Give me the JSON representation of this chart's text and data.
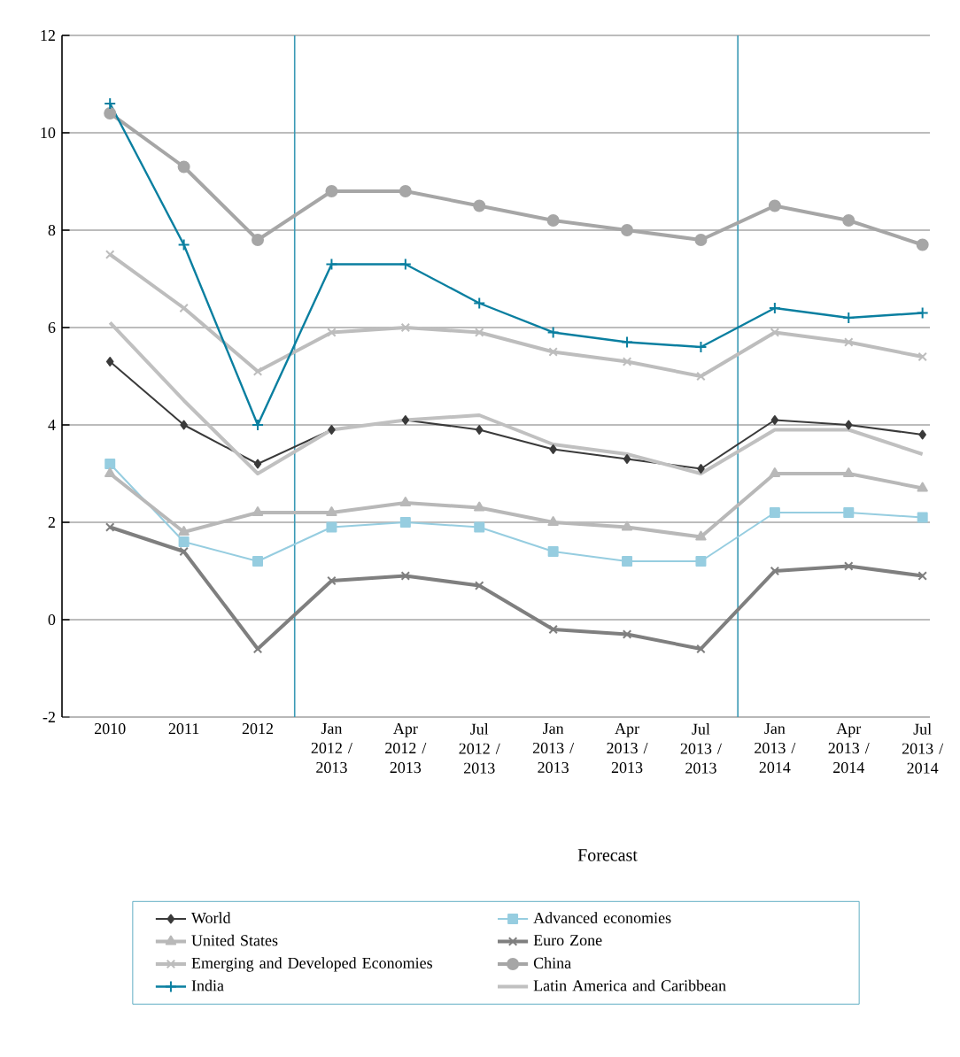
{
  "chart_data": {
    "type": "line",
    "categories": [
      "2010",
      "2011",
      "2012",
      "Jan 2012 / 2013",
      "Apr 2012 / 2013",
      "Jul 2012 / 2013",
      "Jan 2013 / 2013",
      "Apr 2013 / 2013",
      "Jul 2013 / 2013",
      "Jan 2013 / 2014",
      "Apr 2013 / 2014",
      "Jul 2013 / 2014"
    ],
    "series": [
      {
        "name": "World",
        "color": "#3a3a3a",
        "marker": "diamond",
        "values": [
          5.3,
          4.0,
          3.2,
          3.9,
          4.1,
          3.9,
          3.5,
          3.3,
          3.1,
          4.1,
          4.0,
          3.8
        ]
      },
      {
        "name": "United States",
        "color": "#b8b8b8",
        "marker": "triangle",
        "values": [
          3.0,
          1.8,
          2.2,
          2.2,
          2.4,
          2.3,
          2.0,
          1.9,
          1.7,
          3.0,
          3.0,
          2.7
        ]
      },
      {
        "name": "Emerging and Developed Economies",
        "color": "#bdbdbd",
        "marker": "cross",
        "values": [
          7.5,
          6.4,
          5.1,
          5.9,
          6.0,
          5.9,
          5.5,
          5.3,
          5.0,
          5.9,
          5.7,
          5.4
        ]
      },
      {
        "name": "India",
        "color": "#0a7fa0",
        "marker": "plus",
        "values": [
          10.6,
          7.7,
          4.0,
          7.3,
          7.3,
          6.5,
          5.9,
          5.7,
          5.6,
          6.4,
          6.2,
          6.3
        ]
      },
      {
        "name": "Advanced economies",
        "color": "#96cde0",
        "marker": "square",
        "values": [
          3.2,
          1.6,
          1.2,
          1.9,
          2.0,
          1.9,
          1.4,
          1.2,
          1.2,
          2.2,
          2.2,
          2.1
        ]
      },
      {
        "name": "Euro Zone",
        "color": "#7f7f7f",
        "marker": "cross",
        "values": [
          1.9,
          1.4,
          -0.6,
          0.8,
          0.9,
          0.7,
          -0.2,
          -0.3,
          -0.6,
          1.0,
          1.1,
          0.9
        ]
      },
      {
        "name": "China",
        "color": "#a6a6a6",
        "marker": "circle",
        "values": [
          10.4,
          9.3,
          7.8,
          8.8,
          8.8,
          8.5,
          8.2,
          8.0,
          7.8,
          8.5,
          8.2,
          7.7
        ]
      },
      {
        "name": "Latin America and Caribbean",
        "color": "#c0c0c0",
        "marker": "none",
        "values": [
          6.1,
          4.5,
          3.0,
          3.9,
          4.1,
          4.2,
          3.6,
          3.4,
          3.0,
          3.9,
          3.9,
          3.4
        ]
      }
    ],
    "ylim": [
      -2,
      12
    ],
    "yticks": [
      -2,
      0,
      2,
      4,
      6,
      8,
      10,
      12
    ],
    "grid": "y",
    "legend": "bottom",
    "annotations": [
      "Forecast"
    ]
  }
}
